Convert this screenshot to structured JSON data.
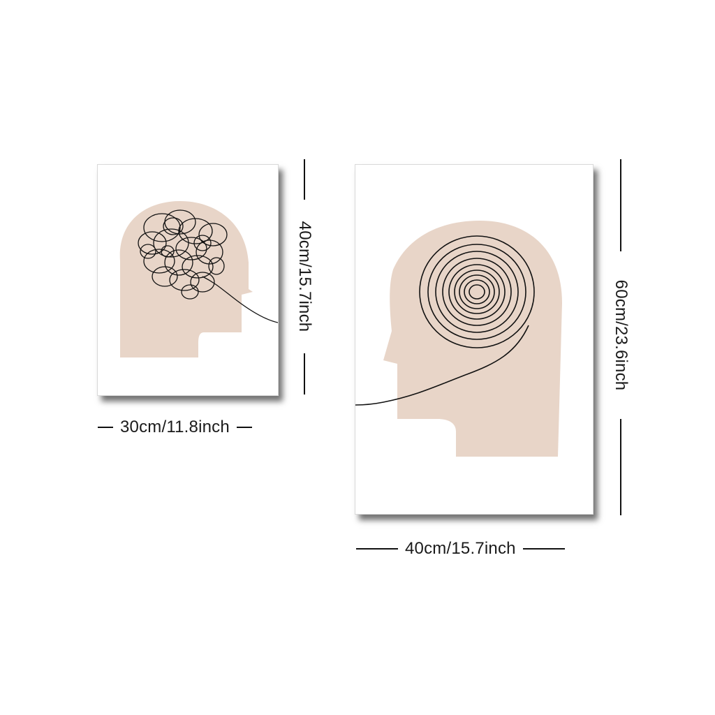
{
  "colors": {
    "background": "#ffffff",
    "head_fill": "#e8d5c8",
    "line_art": "#111111",
    "dimension_text": "#1a1a1a"
  },
  "posters": [
    {
      "artwork": "head-profile-with-tangled-scribble",
      "width_label": "30cm/11.8inch",
      "height_label": "40cm/15.7inch"
    },
    {
      "artwork": "head-profile-with-concentric-spiral",
      "width_label": "40cm/15.7inch",
      "height_label": "60cm/23.6inch"
    }
  ]
}
